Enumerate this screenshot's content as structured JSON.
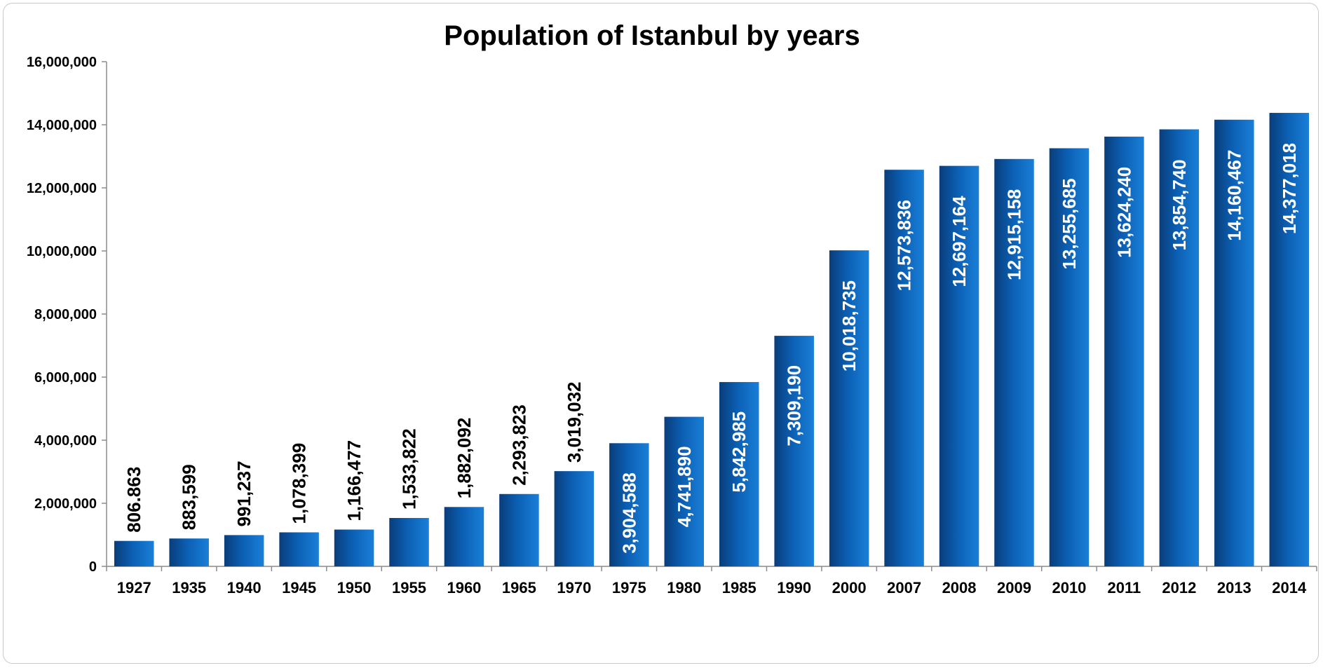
{
  "chart_data": {
    "type": "bar",
    "title": "Population of Istanbul by years",
    "xlabel": "",
    "ylabel": "",
    "ylim": [
      0,
      16000000
    ],
    "yticks": [
      0,
      2000000,
      4000000,
      6000000,
      8000000,
      10000000,
      12000000,
      14000000,
      16000000
    ],
    "ytick_labels": [
      "0",
      "2,000,000",
      "4,000,000",
      "6,000,000",
      "8,000,000",
      "10,000,000",
      "12,000,000",
      "14,000,000",
      "16,000,000"
    ],
    "categories": [
      "1927",
      "1935",
      "1940",
      "1945",
      "1950",
      "1955",
      "1960",
      "1965",
      "1970",
      "1975",
      "1980",
      "1985",
      "1990",
      "2000",
      "2007",
      "2008",
      "2009",
      "2010",
      "2011",
      "2012",
      "2013",
      "2014"
    ],
    "values": [
      806863,
      883599,
      991237,
      1078399,
      1166477,
      1533822,
      1882092,
      2293823,
      3019032,
      3904588,
      4741890,
      5842985,
      7309190,
      10018735,
      12573836,
      12697164,
      12915158,
      13255685,
      13624240,
      13854740,
      14160467,
      14377018
    ],
    "data_labels": [
      "806.863",
      "883,599",
      "991,237",
      "1,078,399",
      "1,166,477",
      "1,533,822",
      "1,882,092",
      "2,293,823",
      "3,019,032",
      "3,904,588",
      "4,741,890",
      "5,842,985",
      "7,309,190",
      "10,018,735",
      "12,573,836",
      "12,697,164",
      "12,915,158",
      "13,255,685",
      "13,624,240",
      "13,854,740",
      "14,160,467",
      "14,377,018"
    ],
    "grid": false,
    "legend": "none",
    "colors": {
      "bar_dark": "#0a3d7a",
      "bar_mid": "#0b5fb3",
      "bar_light": "#1a7fd8",
      "label_outside": "#000000",
      "label_inside": "#ffffff",
      "axis": "#8c8c8c"
    }
  }
}
